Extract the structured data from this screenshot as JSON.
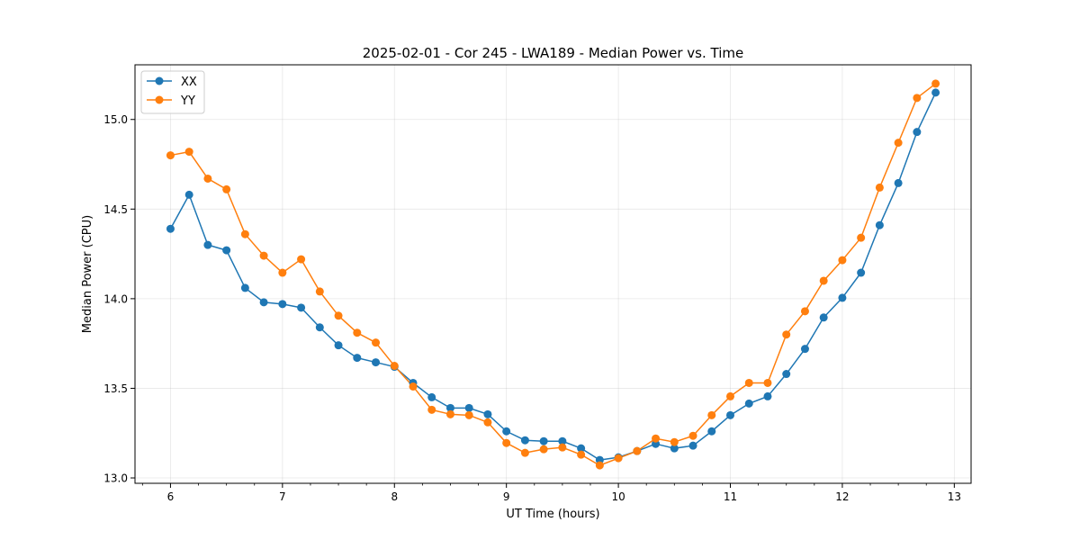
{
  "chart_data": {
    "type": "line",
    "title": "2025-02-01 - Cor 245 - LWA189 - Median Power vs. Time",
    "xlabel": "UT Time (hours)",
    "ylabel": "Median Power (CPU)",
    "xlim": [
      5.683,
      13.15
    ],
    "ylim": [
      12.97,
      15.305
    ],
    "xticks": [
      6,
      7,
      8,
      9,
      10,
      11,
      12,
      13
    ],
    "yticks": [
      13.0,
      13.5,
      14.0,
      14.5,
      15.0
    ],
    "xtick_labels": [
      "6",
      "7",
      "8",
      "9",
      "10",
      "11",
      "12",
      "13"
    ],
    "ytick_labels": [
      "13.0",
      "13.5",
      "14.0",
      "14.5",
      "15.0"
    ],
    "grid": true,
    "legend_position": "top-left",
    "x": [
      6.0,
      6.1667,
      6.3333,
      6.5,
      6.6667,
      6.8333,
      7.0,
      7.1667,
      7.3333,
      7.5,
      7.6667,
      7.8333,
      8.0,
      8.1667,
      8.3333,
      8.5,
      8.6667,
      8.8333,
      9.0,
      9.1667,
      9.3333,
      9.5,
      9.6667,
      9.8333,
      10.0,
      10.1667,
      10.3333,
      10.5,
      10.6667,
      10.8333,
      11.0,
      11.1667,
      11.3333,
      11.5,
      11.6667,
      11.8333,
      12.0,
      12.1667,
      12.3333,
      12.5,
      12.6667,
      12.8333
    ],
    "series": [
      {
        "name": "XX",
        "color": "#1f77b4",
        "values": [
          14.39,
          14.58,
          14.3,
          14.27,
          14.06,
          13.98,
          13.97,
          13.95,
          13.84,
          13.74,
          13.67,
          13.645,
          13.62,
          13.53,
          13.45,
          13.39,
          13.39,
          13.355,
          13.26,
          13.21,
          13.205,
          13.205,
          13.165,
          13.1,
          13.115,
          13.15,
          13.19,
          13.165,
          13.18,
          13.26,
          13.35,
          13.415,
          13.455,
          13.58,
          13.72,
          13.895,
          14.005,
          14.145,
          14.41,
          14.645,
          14.93,
          15.15
        ]
      },
      {
        "name": "YY",
        "color": "#ff7f0e",
        "values": [
          14.8,
          14.82,
          14.67,
          14.61,
          14.36,
          14.24,
          14.145,
          14.22,
          14.04,
          13.905,
          13.81,
          13.755,
          13.625,
          13.51,
          13.38,
          13.355,
          13.35,
          13.31,
          13.195,
          13.14,
          13.16,
          13.17,
          13.13,
          13.07,
          13.11,
          13.15,
          13.22,
          13.2,
          13.235,
          13.35,
          13.455,
          13.53,
          13.53,
          13.8,
          13.93,
          14.1,
          14.215,
          14.34,
          14.62,
          14.87,
          15.12,
          15.2
        ]
      }
    ]
  }
}
